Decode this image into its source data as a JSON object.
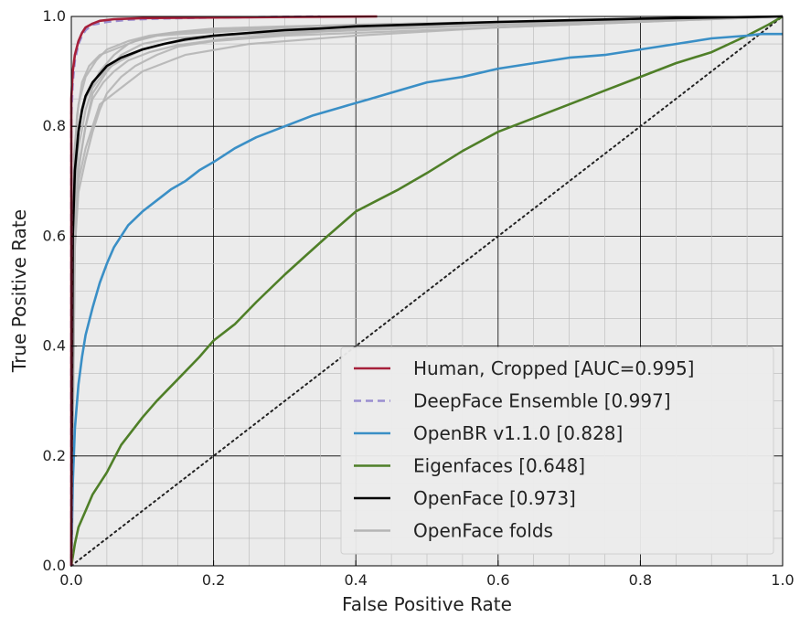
{
  "chart_data": {
    "type": "line",
    "xlabel": "False Positive Rate",
    "ylabel": "True Positive Rate",
    "xlim": [
      0.0,
      1.0
    ],
    "ylim": [
      0.0,
      1.0
    ],
    "x_ticks": [
      "0.0",
      "0.2",
      "0.4",
      "0.6",
      "0.8",
      "1.0"
    ],
    "y_ticks": [
      "0.0",
      "0.2",
      "0.4",
      "0.6",
      "0.8",
      "1.0"
    ],
    "grid": true,
    "minor_grid": true,
    "legend_position": "lower-right",
    "series": [
      {
        "name": "Human, Cropped [AUC=0.995]",
        "color": "#a6203a",
        "style": "solid",
        "x": [
          0.0,
          0.0,
          0.002,
          0.005,
          0.01,
          0.015,
          0.02,
          0.03,
          0.04,
          0.06,
          0.1,
          0.2,
          0.3,
          0.43
        ],
        "y": [
          0.0,
          0.85,
          0.9,
          0.93,
          0.955,
          0.97,
          0.98,
          0.987,
          0.992,
          0.995,
          0.997,
          0.998,
          0.999,
          1.0
        ]
      },
      {
        "name": "DeepFace Ensemble [0.997]",
        "color": "#9a8ed0",
        "style": "dashed",
        "x": [
          0.0,
          0.0,
          0.002,
          0.005,
          0.01,
          0.015,
          0.02,
          0.03,
          0.05,
          0.08,
          0.12,
          0.2,
          0.35
        ],
        "y": [
          0.0,
          0.82,
          0.88,
          0.92,
          0.95,
          0.965,
          0.975,
          0.985,
          0.99,
          0.994,
          0.996,
          0.998,
          1.0
        ]
      },
      {
        "name": "OpenBR v1.1.0 [0.828]",
        "color": "#3a8fc6",
        "style": "solid",
        "x": [
          0.0,
          0.002,
          0.005,
          0.01,
          0.015,
          0.02,
          0.03,
          0.04,
          0.05,
          0.06,
          0.08,
          0.1,
          0.12,
          0.14,
          0.16,
          0.18,
          0.2,
          0.23,
          0.26,
          0.3,
          0.34,
          0.38,
          0.42,
          0.46,
          0.5,
          0.55,
          0.6,
          0.65,
          0.7,
          0.75,
          0.8,
          0.85,
          0.9,
          0.95,
          0.97,
          1.0
        ],
        "y": [
          0.0,
          0.15,
          0.25,
          0.33,
          0.38,
          0.42,
          0.47,
          0.515,
          0.55,
          0.58,
          0.62,
          0.645,
          0.665,
          0.685,
          0.7,
          0.72,
          0.735,
          0.76,
          0.78,
          0.8,
          0.82,
          0.835,
          0.85,
          0.865,
          0.88,
          0.89,
          0.905,
          0.915,
          0.925,
          0.93,
          0.94,
          0.95,
          0.96,
          0.965,
          0.968,
          0.968
        ]
      },
      {
        "name": "Eigenfaces [0.648]",
        "color": "#4f7f28",
        "style": "solid",
        "x": [
          0.0,
          0.005,
          0.01,
          0.02,
          0.03,
          0.05,
          0.07,
          0.1,
          0.12,
          0.15,
          0.18,
          0.2,
          0.23,
          0.26,
          0.3,
          0.33,
          0.36,
          0.4,
          0.43,
          0.46,
          0.5,
          0.55,
          0.6,
          0.65,
          0.7,
          0.75,
          0.8,
          0.85,
          0.9,
          0.95,
          0.98,
          1.0
        ],
        "y": [
          0.0,
          0.04,
          0.07,
          0.1,
          0.13,
          0.17,
          0.22,
          0.27,
          0.3,
          0.34,
          0.38,
          0.41,
          0.44,
          0.48,
          0.53,
          0.565,
          0.6,
          0.645,
          0.665,
          0.685,
          0.715,
          0.755,
          0.79,
          0.815,
          0.84,
          0.865,
          0.89,
          0.915,
          0.935,
          0.965,
          0.985,
          1.0
        ]
      },
      {
        "name": "OpenFace [0.973]",
        "color": "#000000",
        "style": "solid",
        "x": [
          0.0,
          0.002,
          0.005,
          0.01,
          0.015,
          0.02,
          0.03,
          0.04,
          0.05,
          0.07,
          0.1,
          0.13,
          0.16,
          0.2,
          0.25,
          0.3,
          0.35,
          0.4,
          0.5,
          0.6,
          0.7,
          0.8,
          0.9,
          1.0
        ],
        "y": [
          0.0,
          0.6,
          0.72,
          0.79,
          0.83,
          0.855,
          0.88,
          0.895,
          0.91,
          0.925,
          0.94,
          0.95,
          0.958,
          0.965,
          0.97,
          0.975,
          0.978,
          0.982,
          0.986,
          0.99,
          0.993,
          0.996,
          0.998,
          1.0
        ]
      },
      {
        "name": "OpenFace folds",
        "color": "#b5b5b5",
        "style": "solid",
        "folds": [
          {
            "x": [
              0.0,
              0.005,
              0.01,
              0.02,
              0.04,
              0.06,
              0.08,
              0.1,
              0.14,
              0.2,
              0.3,
              0.4,
              0.6,
              0.8,
              1.0
            ],
            "y": [
              0.0,
              0.7,
              0.8,
              0.85,
              0.9,
              0.93,
              0.95,
              0.96,
              0.97,
              0.975,
              0.98,
              0.985,
              0.99,
              0.995,
              1.0
            ]
          },
          {
            "x": [
              0.0,
              0.005,
              0.01,
              0.02,
              0.03,
              0.05,
              0.07,
              0.1,
              0.14,
              0.2,
              0.3,
              0.45,
              0.6,
              0.8,
              1.0
            ],
            "y": [
              0.0,
              0.6,
              0.72,
              0.8,
              0.86,
              0.9,
              0.93,
              0.95,
              0.96,
              0.965,
              0.97,
              0.98,
              0.985,
              0.993,
              1.0
            ]
          },
          {
            "x": [
              0.0,
              0.005,
              0.01,
              0.02,
              0.03,
              0.04,
              0.06,
              0.08,
              0.1,
              0.12,
              0.16,
              0.25,
              0.4,
              0.6,
              0.8,
              1.0
            ],
            "y": [
              0.0,
              0.62,
              0.7,
              0.76,
              0.8,
              0.84,
              0.86,
              0.88,
              0.9,
              0.91,
              0.93,
              0.95,
              0.965,
              0.98,
              0.99,
              1.0
            ]
          },
          {
            "x": [
              0.0,
              0.003,
              0.008,
              0.015,
              0.025,
              0.04,
              0.06,
              0.09,
              0.12,
              0.18,
              0.25,
              0.4,
              0.6,
              0.8,
              1.0
            ],
            "y": [
              0.0,
              0.7,
              0.82,
              0.88,
              0.91,
              0.93,
              0.94,
              0.955,
              0.965,
              0.97,
              0.975,
              0.98,
              0.985,
              0.992,
              1.0
            ]
          },
          {
            "x": [
              0.0,
              0.005,
              0.01,
              0.02,
              0.03,
              0.04,
              0.05,
              0.07,
              0.09,
              0.12,
              0.15,
              0.2,
              0.3,
              0.5,
              0.7,
              1.0
            ],
            "y": [
              0.0,
              0.58,
              0.68,
              0.74,
              0.79,
              0.83,
              0.86,
              0.89,
              0.91,
              0.93,
              0.945,
              0.955,
              0.965,
              0.975,
              0.985,
              1.0
            ]
          },
          {
            "x": [
              0.0,
              0.004,
              0.01,
              0.02,
              0.03,
              0.05,
              0.07,
              0.1,
              0.13,
              0.17,
              0.22,
              0.3,
              0.45,
              0.65,
              0.85,
              1.0
            ],
            "y": [
              0.0,
              0.66,
              0.76,
              0.83,
              0.87,
              0.905,
              0.92,
              0.94,
              0.95,
              0.958,
              0.965,
              0.972,
              0.98,
              0.988,
              0.995,
              1.0
            ]
          },
          {
            "x": [
              0.0,
              0.004,
              0.01,
              0.02,
              0.035,
              0.05,
              0.08,
              0.11,
              0.15,
              0.2,
              0.3,
              0.45,
              0.6,
              0.8,
              1.0
            ],
            "y": [
              0.0,
              0.75,
              0.84,
              0.89,
              0.92,
              0.94,
              0.955,
              0.965,
              0.972,
              0.978,
              0.982,
              0.986,
              0.99,
              0.995,
              1.0
            ]
          },
          {
            "x": [
              0.0,
              0.005,
              0.012,
              0.02,
              0.03,
              0.045,
              0.06,
              0.08,
              0.11,
              0.15,
              0.22,
              0.35,
              0.55,
              0.75,
              1.0
            ],
            "y": [
              0.0,
              0.64,
              0.74,
              0.8,
              0.85,
              0.88,
              0.9,
              0.92,
              0.935,
              0.948,
              0.96,
              0.972,
              0.982,
              0.99,
              1.0
            ]
          }
        ]
      },
      {
        "name": "",
        "color": "#222222",
        "style": "dotted",
        "x": [
          0.0,
          1.0
        ],
        "y": [
          0.0,
          1.0
        ]
      }
    ]
  }
}
